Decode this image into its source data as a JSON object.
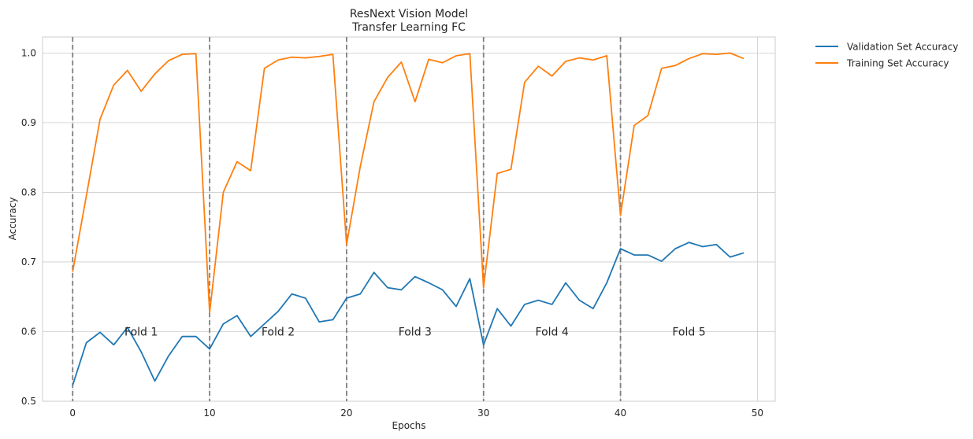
{
  "chart_data": {
    "type": "line",
    "title": "ResNext Vision Model",
    "subtitle": "Transfer Learning FC",
    "xlabel": "Epochs",
    "ylabel": "Accuracy",
    "xlim": [
      -2.2,
      51.3
    ],
    "ylim": [
      0.5,
      1.023
    ],
    "xticks": [
      0,
      10,
      20,
      30,
      40,
      50
    ],
    "yticks": [
      0.5,
      0.6,
      0.7,
      0.8,
      0.9,
      1.0
    ],
    "grid": true,
    "legend_position": "outside-top-right",
    "fold_boundaries": [
      0,
      10,
      20,
      30,
      40
    ],
    "fold_labels": [
      {
        "label": "Fold 1",
        "x": 5,
        "y": 0.6
      },
      {
        "label": "Fold 2",
        "x": 15,
        "y": 0.6
      },
      {
        "label": "Fold 3",
        "x": 25,
        "y": 0.6
      },
      {
        "label": "Fold 4",
        "x": 35,
        "y": 0.6
      },
      {
        "label": "Fold 5",
        "x": 45,
        "y": 0.6
      }
    ],
    "x": [
      0,
      1,
      2,
      3,
      4,
      5,
      6,
      7,
      8,
      9,
      10,
      11,
      12,
      13,
      14,
      15,
      16,
      17,
      18,
      19,
      20,
      21,
      22,
      23,
      24,
      25,
      26,
      27,
      28,
      29,
      30,
      31,
      32,
      33,
      34,
      35,
      36,
      37,
      38,
      39,
      40,
      41,
      42,
      43,
      44,
      45,
      46,
      47,
      48,
      49
    ],
    "series": [
      {
        "name": "Validation Set Accuracy",
        "color": "#1f77b4",
        "values": [
          0.523,
          0.584,
          0.599,
          0.581,
          0.606,
          0.571,
          0.529,
          0.565,
          0.593,
          0.593,
          0.575,
          0.611,
          0.623,
          0.593,
          0.611,
          0.629,
          0.654,
          0.648,
          0.614,
          0.617,
          0.648,
          0.654,
          0.685,
          0.663,
          0.66,
          0.679,
          0.67,
          0.66,
          0.636,
          0.676,
          0.581,
          0.633,
          0.608,
          0.639,
          0.645,
          0.639,
          0.67,
          0.645,
          0.633,
          0.67,
          0.719,
          0.71,
          0.71,
          0.701,
          0.719,
          0.728,
          0.722,
          0.725,
          0.707,
          0.713
        ]
      },
      {
        "name": "Training Set Accuracy",
        "color": "#ff7f0e",
        "values": [
          0.686,
          0.795,
          0.905,
          0.954,
          0.975,
          0.945,
          0.97,
          0.989,
          0.998,
          0.999,
          0.627,
          0.8,
          0.844,
          0.831,
          0.978,
          0.99,
          0.994,
          0.993,
          0.995,
          0.998,
          0.725,
          0.837,
          0.93,
          0.965,
          0.987,
          0.93,
          0.991,
          0.986,
          0.996,
          0.999,
          0.663,
          0.827,
          0.833,
          0.958,
          0.981,
          0.967,
          0.988,
          0.993,
          0.99,
          0.996,
          0.767,
          0.896,
          0.91,
          0.978,
          0.982,
          0.992,
          0.999,
          0.998,
          1.0,
          0.992
        ]
      }
    ]
  }
}
